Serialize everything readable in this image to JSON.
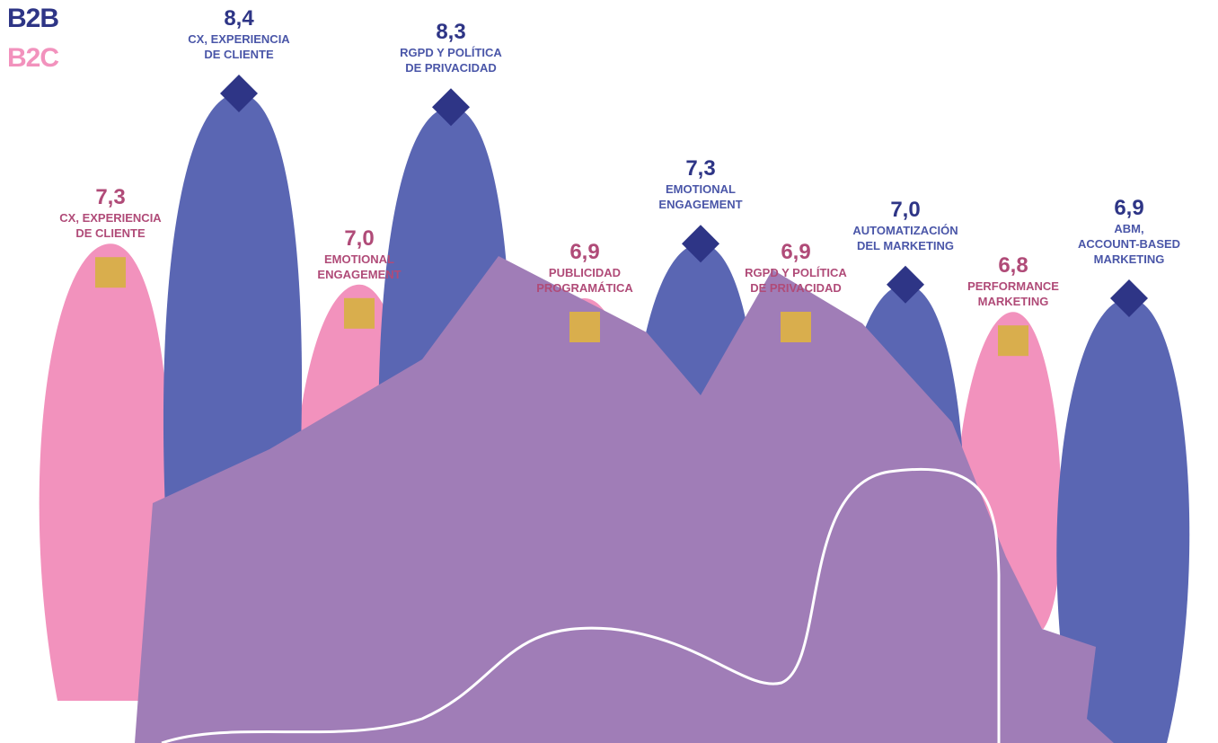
{
  "legend": {
    "b2b": "B2B",
    "b2c": "B2C"
  },
  "colors": {
    "b2b_fill": "#5A66B3",
    "b2c_fill": "#F292BD",
    "overlap_fill": "#A07DB7",
    "b2b_text": "#2E3586",
    "b2b_marker": "#2E3586",
    "b2c_text": "#B04B78",
    "b2c_label_text": "#B04B78",
    "b2c_marker": "#D9AE4D",
    "b2b_label_text": "#4A56A8",
    "path_line": "#FFFFFF"
  },
  "chart_data": {
    "type": "area",
    "series": [
      {
        "name": "B2B",
        "marker": "diamond",
        "points": [
          {
            "category": "CX, EXPERIENCIA DE CLIENTE",
            "value": 8.4,
            "value_label": "8,4"
          },
          {
            "category": "RGPD Y POLÍTICA DE PRIVACIDAD",
            "value": 8.3,
            "value_label": "8,3"
          },
          {
            "category": "EMOTIONAL ENGAGEMENT",
            "value": 7.3,
            "value_label": "7,3"
          },
          {
            "category": "AUTOMATIZACIÓN DEL MARKETING",
            "value": 7.0,
            "value_label": "7,0"
          },
          {
            "category": "ABM, ACCOUNT-BASED MARKETING",
            "value": 6.9,
            "value_label": "6,9"
          }
        ]
      },
      {
        "name": "B2C",
        "marker": "square",
        "points": [
          {
            "category": "CX, EXPERIENCIA DE CLIENTE",
            "value": 7.3,
            "value_label": "7,3"
          },
          {
            "category": "EMOTIONAL ENGAGEMENT",
            "value": 7.0,
            "value_label": "7,0"
          },
          {
            "category": "PUBLICIDAD PROGRAMÁTICA",
            "value": 6.9,
            "value_label": "6,9"
          },
          {
            "category": "RGPD Y POLÍTICA DE PRIVACIDAD",
            "value": 6.9,
            "value_label": "6,9"
          },
          {
            "category": "PERFORMANCE MARKETING",
            "value": 6.8,
            "value_label": "6,8"
          }
        ]
      }
    ],
    "legend_placement": "top-left",
    "grid": false,
    "axes": false
  }
}
